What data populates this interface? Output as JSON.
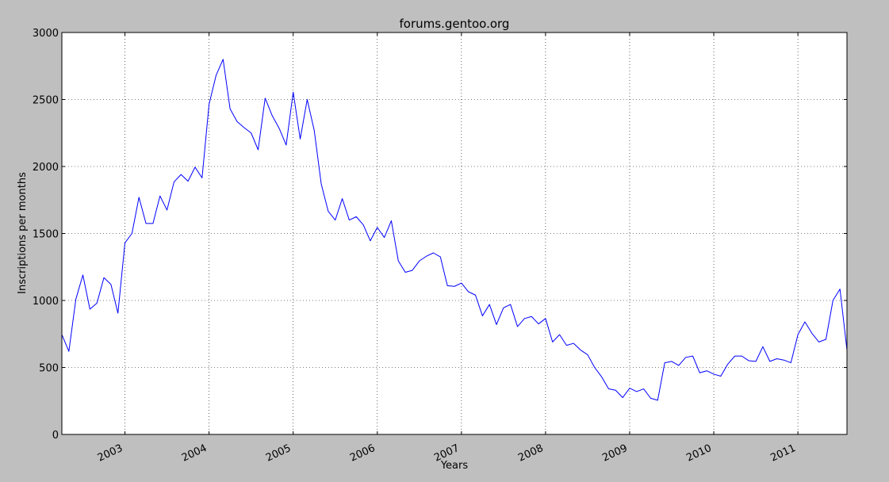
{
  "chart_data": {
    "type": "line",
    "title": "forums.gentoo.org",
    "xlabel": "Years",
    "ylabel": "Inscriptions per months",
    "grid": true,
    "xlim": [
      "2002-04",
      "2011-08"
    ],
    "ylim": [
      0,
      3000
    ],
    "xticks": [
      "2003",
      "2004",
      "2005",
      "2006",
      "2007",
      "2008",
      "2009",
      "2010",
      "2011"
    ],
    "yticks": [
      0,
      500,
      1000,
      1500,
      2000,
      2500,
      3000
    ],
    "series": [
      {
        "color": "#0000ff",
        "points": [
          [
            "2002-04",
            745
          ],
          [
            "2002-05",
            620
          ],
          [
            "2002-06",
            1010
          ],
          [
            "2002-07",
            1190
          ],
          [
            "2002-08",
            935
          ],
          [
            "2002-09",
            980
          ],
          [
            "2002-10",
            1170
          ],
          [
            "2002-11",
            1120
          ],
          [
            "2002-12",
            905
          ],
          [
            "2003-01",
            1430
          ],
          [
            "2003-02",
            1500
          ],
          [
            "2003-03",
            1770
          ],
          [
            "2003-04",
            1575
          ],
          [
            "2003-05",
            1575
          ],
          [
            "2003-06",
            1780
          ],
          [
            "2003-07",
            1675
          ],
          [
            "2003-08",
            1885
          ],
          [
            "2003-09",
            1940
          ],
          [
            "2003-10",
            1890
          ],
          [
            "2003-11",
            1995
          ],
          [
            "2003-12",
            1915
          ],
          [
            "2004-01",
            2465
          ],
          [
            "2004-02",
            2680
          ],
          [
            "2004-03",
            2800
          ],
          [
            "2004-04",
            2430
          ],
          [
            "2004-05",
            2335
          ],
          [
            "2004-06",
            2290
          ],
          [
            "2004-07",
            2250
          ],
          [
            "2004-08",
            2125
          ],
          [
            "2004-09",
            2510
          ],
          [
            "2004-10",
            2380
          ],
          [
            "2004-11",
            2285
          ],
          [
            "2004-12",
            2160
          ],
          [
            "2005-01",
            2555
          ],
          [
            "2005-02",
            2205
          ],
          [
            "2005-03",
            2500
          ],
          [
            "2005-04",
            2270
          ],
          [
            "2005-05",
            1870
          ],
          [
            "2005-06",
            1665
          ],
          [
            "2005-07",
            1600
          ],
          [
            "2005-08",
            1760
          ],
          [
            "2005-09",
            1600
          ],
          [
            "2005-10",
            1625
          ],
          [
            "2005-11",
            1565
          ],
          [
            "2005-12",
            1445
          ],
          [
            "2006-01",
            1545
          ],
          [
            "2006-02",
            1470
          ],
          [
            "2006-03",
            1595
          ],
          [
            "2006-04",
            1295
          ],
          [
            "2006-05",
            1210
          ],
          [
            "2006-06",
            1225
          ],
          [
            "2006-07",
            1295
          ],
          [
            "2006-08",
            1330
          ],
          [
            "2006-09",
            1355
          ],
          [
            "2006-10",
            1325
          ],
          [
            "2006-11",
            1110
          ],
          [
            "2006-12",
            1105
          ],
          [
            "2007-01",
            1130
          ],
          [
            "2007-02",
            1065
          ],
          [
            "2007-03",
            1040
          ],
          [
            "2007-04",
            885
          ],
          [
            "2007-05",
            970
          ],
          [
            "2007-06",
            820
          ],
          [
            "2007-07",
            945
          ],
          [
            "2007-08",
            970
          ],
          [
            "2007-09",
            805
          ],
          [
            "2007-10",
            865
          ],
          [
            "2007-11",
            880
          ],
          [
            "2007-12",
            825
          ],
          [
            "2008-01",
            865
          ],
          [
            "2008-02",
            690
          ],
          [
            "2008-03",
            745
          ],
          [
            "2008-04",
            665
          ],
          [
            "2008-05",
            680
          ],
          [
            "2008-06",
            630
          ],
          [
            "2008-07",
            595
          ],
          [
            "2008-08",
            500
          ],
          [
            "2008-09",
            430
          ],
          [
            "2008-10",
            340
          ],
          [
            "2008-11",
            330
          ],
          [
            "2008-12",
            275
          ],
          [
            "2009-01",
            345
          ],
          [
            "2009-02",
            320
          ],
          [
            "2009-03",
            340
          ],
          [
            "2009-04",
            270
          ],
          [
            "2009-05",
            255
          ],
          [
            "2009-06",
            535
          ],
          [
            "2009-07",
            545
          ],
          [
            "2009-08",
            515
          ],
          [
            "2009-09",
            575
          ],
          [
            "2009-10",
            585
          ],
          [
            "2009-11",
            460
          ],
          [
            "2009-12",
            475
          ],
          [
            "2010-01",
            450
          ],
          [
            "2010-02",
            435
          ],
          [
            "2010-03",
            525
          ],
          [
            "2010-04",
            585
          ],
          [
            "2010-05",
            585
          ],
          [
            "2010-06",
            550
          ],
          [
            "2010-07",
            545
          ],
          [
            "2010-08",
            655
          ],
          [
            "2010-09",
            545
          ],
          [
            "2010-10",
            565
          ],
          [
            "2010-11",
            555
          ],
          [
            "2010-12",
            535
          ],
          [
            "2011-01",
            745
          ],
          [
            "2011-02",
            840
          ],
          [
            "2011-03",
            755
          ],
          [
            "2011-04",
            690
          ],
          [
            "2011-05",
            710
          ],
          [
            "2011-06",
            1000
          ],
          [
            "2011-07",
            1085
          ],
          [
            "2011-08",
            630
          ]
        ]
      }
    ]
  }
}
